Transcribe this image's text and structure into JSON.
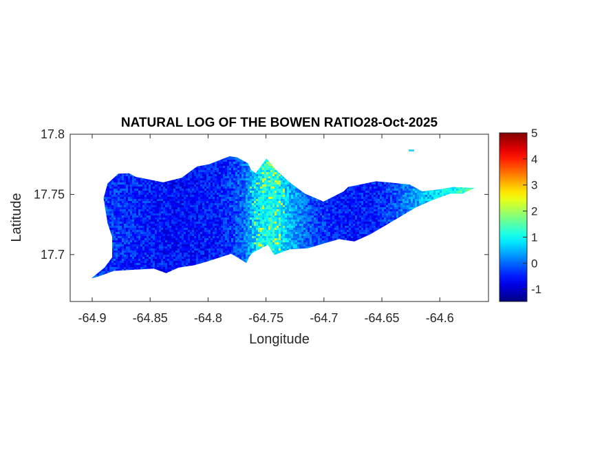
{
  "chart_data": {
    "type": "heatmap",
    "title": "NATURAL LOG OF THE BOWEN RATIO28-Oct-2025",
    "xlabel": "Longitude",
    "ylabel": "Latitude",
    "xlim": [
      -64.919,
      -64.558
    ],
    "ylim": [
      17.661,
      17.8
    ],
    "xticks": [
      -64.9,
      -64.85,
      -64.8,
      -64.75,
      -64.7,
      -64.65,
      -64.6
    ],
    "xtick_labels": [
      "-64.9",
      "-64.85",
      "-64.8",
      "-64.75",
      "-64.7",
      "-64.65",
      "-64.6"
    ],
    "yticks": [
      17.7,
      17.75,
      17.8
    ],
    "ytick_labels": [
      "17.7",
      "17.75",
      "17.8"
    ],
    "grid": false,
    "colormap": "jet",
    "colorbar": {
      "location": "right",
      "clim": [
        -1.47,
        5
      ],
      "ticks": [
        -1,
        0,
        1,
        2,
        3,
        4,
        5
      ],
      "tick_labels": [
        "-1",
        "0",
        "1",
        "2",
        "3",
        "4",
        "5"
      ]
    },
    "land_outline_lonlat": [
      [
        -64.9008,
        17.6802
      ],
      [
        -64.8894,
        17.6892
      ],
      [
        -64.8827,
        17.6977
      ],
      [
        -64.8827,
        17.7147
      ],
      [
        -64.8867,
        17.726
      ],
      [
        -64.8902,
        17.7468
      ],
      [
        -64.8867,
        17.7591
      ],
      [
        -64.8774,
        17.7672
      ],
      [
        -64.8681,
        17.7675
      ],
      [
        -64.8627,
        17.7647
      ],
      [
        -64.8388,
        17.76
      ],
      [
        -64.8228,
        17.7638
      ],
      [
        -64.8095,
        17.7732
      ],
      [
        -64.7988,
        17.7751
      ],
      [
        -64.7815,
        17.7817
      ],
      [
        -64.7749,
        17.7808
      ],
      [
        -64.7656,
        17.776
      ],
      [
        -64.7629,
        17.7704
      ],
      [
        -64.7589,
        17.7675
      ],
      [
        -64.7496,
        17.7798
      ],
      [
        -64.7403,
        17.7694
      ],
      [
        -64.7296,
        17.76
      ],
      [
        -64.7163,
        17.7506
      ],
      [
        -64.7004,
        17.744
      ],
      [
        -64.683,
        17.7525
      ],
      [
        -64.6791,
        17.7562
      ],
      [
        -64.6551,
        17.7609
      ],
      [
        -64.6445,
        17.76
      ],
      [
        -64.6258,
        17.7581
      ],
      [
        -64.6152,
        17.7525
      ],
      [
        -64.5992,
        17.7543
      ],
      [
        -64.5885,
        17.7562
      ],
      [
        -64.5699,
        17.7553
      ],
      [
        -64.5806,
        17.7506
      ],
      [
        -64.5912,
        17.7506
      ],
      [
        -64.6072,
        17.7449
      ],
      [
        -64.6205,
        17.7392
      ],
      [
        -64.6338,
        17.7317
      ],
      [
        -64.6471,
        17.7241
      ],
      [
        -64.6604,
        17.7166
      ],
      [
        -64.6737,
        17.7109
      ],
      [
        -64.687,
        17.7128
      ],
      [
        -64.7004,
        17.7091
      ],
      [
        -64.7137,
        17.7053
      ],
      [
        -64.7296,
        17.7043
      ],
      [
        -64.7429,
        17.6996
      ],
      [
        -64.7483,
        17.7081
      ],
      [
        -64.7616,
        17.7015
      ],
      [
        -64.7642,
        17.6987
      ],
      [
        -64.7669,
        17.693
      ],
      [
        -64.7749,
        17.6977
      ],
      [
        -64.7802,
        17.7006
      ],
      [
        -64.8015,
        17.694
      ],
      [
        -64.8122,
        17.6911
      ],
      [
        -64.8255,
        17.6892
      ],
      [
        -64.8361,
        17.6845
      ],
      [
        -64.8468,
        17.6883
      ],
      [
        -64.8654,
        17.6873
      ],
      [
        -64.8814,
        17.6864
      ],
      [
        -64.8947,
        17.6817
      ]
    ],
    "islet_lonlat": [
      -64.6245,
      17.7865
    ],
    "value_profile_by_longitude": [
      [
        -64.9,
        -0.2
      ],
      [
        -64.87,
        -0.4
      ],
      [
        -64.83,
        -0.6
      ],
      [
        -64.79,
        -0.5
      ],
      [
        -64.77,
        0.0
      ],
      [
        -64.755,
        0.9
      ],
      [
        -64.745,
        1.1
      ],
      [
        -64.73,
        0.5
      ],
      [
        -64.71,
        -0.2
      ],
      [
        -64.69,
        -0.5
      ],
      [
        -64.66,
        -0.5
      ],
      [
        -64.64,
        -0.2
      ],
      [
        -64.62,
        0.4
      ],
      [
        -64.6,
        0.8
      ],
      [
        -64.575,
        1.4
      ]
    ]
  }
}
